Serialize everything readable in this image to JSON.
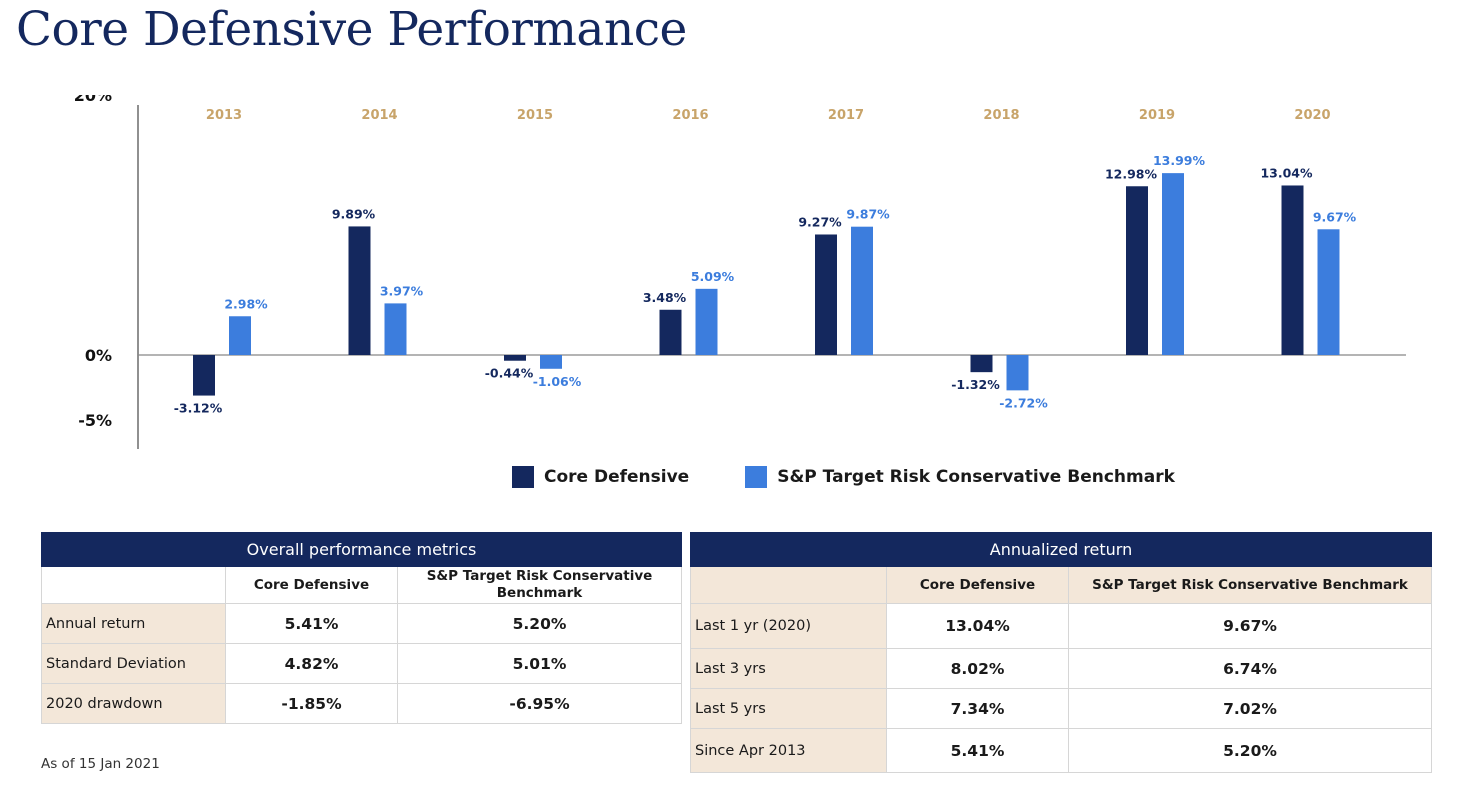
{
  "page": {
    "title": "Core Defensive Performance",
    "footnote": "As of 15 Jan 2021"
  },
  "colors": {
    "core": "#14285e",
    "benchmark": "#3c7ddd",
    "year_label": "#c8a46a",
    "header_fill": "#14285e",
    "label_fill": "#f3e7d9"
  },
  "chart_data": {
    "type": "bar",
    "categories": [
      "2013",
      "2014",
      "2015",
      "2016",
      "2017",
      "2018",
      "2019",
      "2020"
    ],
    "series": [
      {
        "name": "Core Defensive",
        "values": [
          -3.12,
          9.89,
          -0.44,
          3.48,
          9.27,
          -1.32,
          12.98,
          13.04
        ],
        "labels": [
          "-3.12%",
          "9.89%",
          "-0.44%",
          "3.48%",
          "9.27%",
          "-1.32%",
          "12.98%",
          "13.04%"
        ]
      },
      {
        "name": "S&P Target Risk Conservative Benchmark",
        "values": [
          2.98,
          3.97,
          -1.06,
          5.09,
          9.87,
          -2.72,
          13.99,
          9.67
        ],
        "labels": [
          "2.98%",
          "3.97%",
          "-1.06%",
          "5.09%",
          "9.87%",
          "-2.72%",
          "13.99%",
          "9.67%"
        ]
      }
    ],
    "yticks": [
      {
        "value": 20,
        "label": "20%"
      },
      {
        "value": 0,
        "label": "0%"
      },
      {
        "value": -5,
        "label": "-5%"
      }
    ],
    "category_position": "top",
    "legend_position": "bottom-center",
    "grid": false
  },
  "overall": {
    "title": "Overall performance metrics",
    "columns": [
      "Core Defensive",
      "S&P Target Risk Conservative Benchmark"
    ],
    "rows": [
      {
        "label": "Annual return",
        "core": "5.41%",
        "bench": "5.20%"
      },
      {
        "label": "Standard Deviation",
        "core": "4.82%",
        "bench": "5.01%"
      },
      {
        "label": "2020 drawdown",
        "core": "-1.85%",
        "bench": "-6.95%"
      }
    ]
  },
  "annualized": {
    "title": "Annualized return",
    "columns": [
      "Core Defensive",
      "S&P Target Risk Conservative Benchmark"
    ],
    "rows": [
      {
        "label": "Last 1 yr (2020)",
        "core": "13.04%",
        "bench": "9.67%"
      },
      {
        "label": "Last 3 yrs",
        "core": "8.02%",
        "bench": "6.74%"
      },
      {
        "label": "Last 5 yrs",
        "core": "7.34%",
        "bench": "7.02%"
      },
      {
        "label": "Since Apr 2013",
        "core": "5.41%",
        "bench": "5.20%"
      }
    ]
  }
}
